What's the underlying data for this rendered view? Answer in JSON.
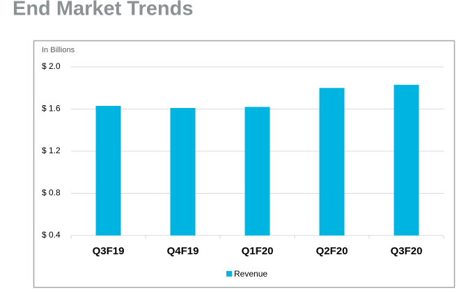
{
  "chart_data": {
    "type": "bar",
    "title": "End Market Trends",
    "y_axis_label": "In Billions",
    "categories": [
      "Q3F19",
      "Q4F19",
      "Q1F20",
      "Q2F20",
      "Q3F20"
    ],
    "series": [
      {
        "name": "Revenue",
        "color": "#00b4e1",
        "values": [
          1.63,
          1.61,
          1.62,
          1.8,
          1.83
        ]
      }
    ],
    "ylim": [
      0.4,
      2.0
    ],
    "yticks": [
      {
        "value": 0.4,
        "label": "$ 0.4"
      },
      {
        "value": 0.8,
        "label": "$ 0.8"
      },
      {
        "value": 1.2,
        "label": "$ 1.2"
      },
      {
        "value": 1.6,
        "label": "$ 1.6"
      },
      {
        "value": 2.0,
        "label": "$ 2.0"
      }
    ],
    "grid": true,
    "legend": "bottom"
  }
}
